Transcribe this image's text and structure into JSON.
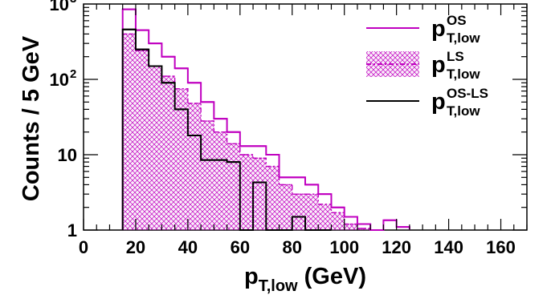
{
  "chart_data": {
    "type": "histogram",
    "x_scale": "linear",
    "y_scale": "log",
    "bin_width": 5,
    "xlim": [
      0,
      170
    ],
    "ylim": [
      1,
      1000
    ],
    "x_ticks": [
      0,
      20,
      40,
      60,
      80,
      100,
      120,
      140,
      160
    ],
    "y_ticks": [
      {
        "value": 1,
        "label": "1"
      },
      {
        "value": 10,
        "label": "10"
      },
      {
        "value": 100,
        "label": "10",
        "exp": "2"
      },
      {
        "value": 1000,
        "label": "10",
        "exp": "3"
      }
    ],
    "xlabel": {
      "base": "p",
      "sub": "T,low",
      "suffix": " (GeV)"
    },
    "ylabel": "Counts / 5 GeV",
    "legend_position": "top-right",
    "series": [
      {
        "key": "os",
        "legend": {
          "base": "p",
          "sup": "OS",
          "sub": "T,low"
        },
        "color": "#c000c0",
        "style": "solid-line",
        "bin_edges": [
          15,
          20,
          25,
          30,
          35,
          40,
          45,
          50,
          55,
          60,
          65,
          70,
          75,
          80,
          85,
          90,
          95,
          100,
          105,
          110,
          115,
          120,
          125
        ],
        "values": [
          850,
          450,
          300,
          200,
          140,
          90,
          50,
          30,
          20,
          13,
          13,
          10,
          5,
          5,
          4,
          3,
          2,
          1.5,
          1.2,
          1.0,
          1.35,
          1.1
        ]
      },
      {
        "key": "ls",
        "legend": {
          "base": "p",
          "sup": "LS",
          "sub": "T,low"
        },
        "color": "#c000c0",
        "fill": "#e6a6e6",
        "style": "dash-dot-hatched",
        "bin_edges": [
          15,
          20,
          25,
          30,
          35,
          40,
          45,
          50,
          55,
          60,
          65,
          70,
          75,
          80,
          85,
          90,
          95,
          100,
          105,
          110
        ],
        "values": [
          400,
          240,
          150,
          110,
          75,
          48,
          28,
          20,
          14,
          10,
          9,
          7,
          4,
          3,
          3,
          2.2,
          1.7,
          1.2,
          1.05
        ]
      },
      {
        "key": "osls",
        "legend": {
          "base": "p",
          "sup": "OS-LS",
          "sub": "T,low"
        },
        "color": "#000000",
        "style": "solid-line",
        "bin_edges": [
          15,
          20,
          25,
          30,
          35,
          40,
          45,
          50,
          55,
          60,
          65,
          70,
          75,
          80,
          85,
          90,
          95
        ],
        "values": [
          460,
          250,
          150,
          90,
          40,
          18,
          8.5,
          8.5,
          8,
          1,
          4.3,
          1,
          1,
          1.5,
          1,
          1
        ]
      }
    ]
  }
}
